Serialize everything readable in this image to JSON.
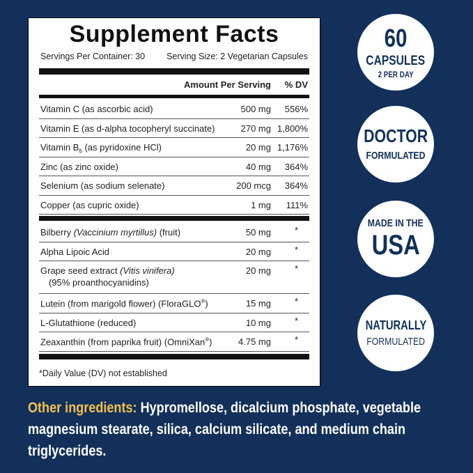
{
  "panel": {
    "title": "Supplement Facts",
    "servings_per_container": "Servings Per Container: 30",
    "serving_size": "Serving Size: 2 Vegetarian Capsules",
    "header": {
      "amount": "Amount Per Serving",
      "dv": "% DV"
    },
    "vitamins_minerals": [
      {
        "name": [
          {
            "text": "Vitamin C (as ascorbic acid)"
          }
        ],
        "amount": "500 mg",
        "dv": "556%"
      },
      {
        "name": [
          {
            "text": "Vitamin E (as d-alpha tocopheryl succinate)"
          }
        ],
        "amount": "270 mg",
        "dv": "1,800%"
      },
      {
        "name": [
          {
            "text": "Vitamin B"
          },
          {
            "text": "6",
            "style": "sub"
          },
          {
            "text": " (as pyridoxine HCl)"
          }
        ],
        "amount": "20 mg",
        "dv": "1,176%"
      },
      {
        "name": [
          {
            "text": "Zinc (as zinc oxide)"
          }
        ],
        "amount": "40 mg",
        "dv": "364%"
      },
      {
        "name": [
          {
            "text": "Selenium (as sodium selenate)"
          }
        ],
        "amount": "200 mcg",
        "dv": "364%"
      },
      {
        "name": [
          {
            "text": "Copper (as cupric oxide)"
          }
        ],
        "amount": "1 mg",
        "dv": "111%"
      }
    ],
    "other_nutrients": [
      {
        "name": [
          {
            "text": "Bilberry "
          },
          {
            "text": "(Vaccinium myrtillus)",
            "style": "italic"
          },
          {
            "text": " (fruit)"
          }
        ],
        "amount": "50 mg",
        "dv": "*"
      },
      {
        "name": [
          {
            "text": "Alpha Lipoic Acid"
          }
        ],
        "amount": "20 mg",
        "dv": "*"
      },
      {
        "name": [
          {
            "text": "Grape seed extract "
          },
          {
            "text": "(Vitis vinifera)",
            "style": "italic"
          }
        ],
        "note": "(95% proanthocyanidins)",
        "amount": "20 mg",
        "dv": "*"
      },
      {
        "name": [
          {
            "text": "Lutein (from marigold flower) (FloraGLO"
          },
          {
            "text": "®",
            "style": "sup"
          },
          {
            "text": ")"
          }
        ],
        "amount": "15 mg",
        "dv": "*"
      },
      {
        "name": [
          {
            "text": "L-Glutathione (reduced)"
          }
        ],
        "amount": "10 mg",
        "dv": "*"
      },
      {
        "name": [
          {
            "text": "Zeaxanthin (from paprika fruit) (OmniXan"
          },
          {
            "text": "®",
            "style": "sup"
          },
          {
            "text": ")"
          }
        ],
        "amount": "4.75 mg",
        "dv": "*"
      }
    ],
    "footnote": "*Daily Value (DV) not established"
  },
  "badges": [
    {
      "lines": [
        "60",
        "CAPSULES",
        "2 PER DAY"
      ]
    },
    {
      "lines": [
        "DOCTOR",
        "FORMULATED"
      ]
    },
    {
      "lines": [
        "MADE IN THE",
        "USA"
      ]
    },
    {
      "lines": [
        "NATURALLY",
        "FORMULATED"
      ]
    }
  ],
  "other_ingredients": {
    "label": "Other ingredients:",
    "text": "Hypromellose, dicalcium phosphate, vegetable magnesium stearate, silica, calcium silicate, and medium chain triglycerides."
  }
}
